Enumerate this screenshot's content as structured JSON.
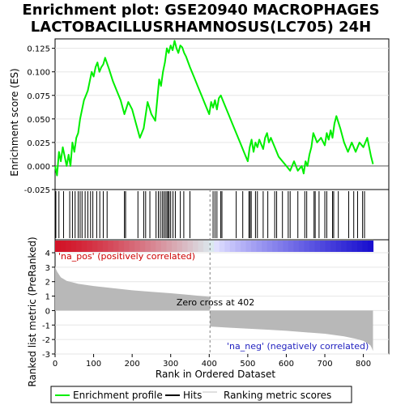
{
  "chart_data": [
    {
      "type": "line",
      "title": "Enrichment plot: GSE20940 MACROPHAGES LACTOBACILLUSRHAMNOSUS(LC705) 24H",
      "title_lines": [
        "Enrichment plot: GSE20940 MACROPHAGES",
        "LACTOBACILLUSRHAMNOSUS(LC705) 24H"
      ],
      "ylabel": "Enrichment score (ES)",
      "xlim": [
        0,
        866
      ],
      "ylim": [
        -0.025,
        0.135
      ],
      "yticks": [
        -0.025,
        0.0,
        0.025,
        0.05,
        0.075,
        0.1,
        0.125
      ],
      "ytick_labels": [
        "-0.025",
        "0.000",
        "0.025",
        "0.050",
        "0.075",
        "0.100",
        "0.125"
      ],
      "series": [
        {
          "name": "Enrichment profile",
          "color": "#00ee00",
          "x": [
            0,
            5,
            10,
            15,
            20,
            25,
            30,
            35,
            40,
            45,
            50,
            55,
            60,
            65,
            70,
            75,
            80,
            85,
            90,
            95,
            100,
            105,
            110,
            115,
            120,
            125,
            130,
            140,
            150,
            160,
            170,
            180,
            190,
            200,
            210,
            220,
            230,
            240,
            250,
            260,
            270,
            275,
            280,
            285,
            290,
            295,
            300,
            305,
            310,
            315,
            320,
            325,
            330,
            335,
            340,
            350,
            360,
            370,
            380,
            390,
            400,
            405,
            410,
            415,
            420,
            425,
            430,
            440,
            450,
            460,
            470,
            480,
            490,
            500,
            505,
            510,
            515,
            520,
            525,
            530,
            540,
            545,
            550,
            555,
            560,
            570,
            580,
            590,
            600,
            610,
            620,
            630,
            640,
            645,
            650,
            655,
            660,
            665,
            670,
            680,
            690,
            700,
            705,
            710,
            715,
            720,
            725,
            730,
            740,
            750,
            760,
            770,
            780,
            790,
            800,
            810,
            820,
            825
          ],
          "y": [
            0.0,
            -0.01,
            0.015,
            0.005,
            0.02,
            0.01,
            0.0,
            0.012,
            0.0,
            0.025,
            0.015,
            0.03,
            0.035,
            0.05,
            0.06,
            0.07,
            0.075,
            0.08,
            0.09,
            0.1,
            0.095,
            0.105,
            0.11,
            0.1,
            0.105,
            0.108,
            0.115,
            0.103,
            0.09,
            0.08,
            0.07,
            0.055,
            0.068,
            0.06,
            0.045,
            0.03,
            0.04,
            0.068,
            0.055,
            0.048,
            0.092,
            0.085,
            0.1,
            0.11,
            0.125,
            0.12,
            0.128,
            0.123,
            0.133,
            0.125,
            0.12,
            0.128,
            0.126,
            0.12,
            0.116,
            0.105,
            0.095,
            0.085,
            0.075,
            0.065,
            0.055,
            0.068,
            0.062,
            0.07,
            0.06,
            0.072,
            0.075,
            0.065,
            0.055,
            0.045,
            0.035,
            0.025,
            0.015,
            0.005,
            0.02,
            0.028,
            0.015,
            0.025,
            0.02,
            0.028,
            0.018,
            0.03,
            0.035,
            0.025,
            0.03,
            0.02,
            0.01,
            0.005,
            0.0,
            -0.005,
            0.005,
            -0.005,
            0.0,
            -0.008,
            0.005,
            0.0,
            0.012,
            0.02,
            0.035,
            0.025,
            0.03,
            0.022,
            0.035,
            0.028,
            0.038,
            0.03,
            0.045,
            0.053,
            0.04,
            0.025,
            0.015,
            0.025,
            0.015,
            0.025,
            0.02,
            0.03,
            0.01,
            0.002
          ]
        }
      ],
      "hits": [
        2,
        10,
        22,
        38,
        45,
        52,
        60,
        65,
        70,
        78,
        85,
        92,
        98,
        108,
        116,
        125,
        135,
        180,
        183,
        215,
        230,
        235,
        246,
        262,
        268,
        273,
        278,
        282,
        286,
        290,
        293,
        296,
        300,
        306,
        312,
        325,
        334,
        350,
        410,
        415,
        420,
        430,
        433,
        470,
        487,
        503,
        506,
        509,
        520,
        525,
        540,
        552,
        570,
        575,
        590,
        605,
        610,
        630,
        648,
        653,
        672,
        675,
        685,
        700,
        705,
        720,
        723,
        735,
        762,
        775,
        785,
        798,
        803
      ],
      "ranked_metric": {
        "ylabel": "Ranked list metric (PreRanked)",
        "xlabel": "Rank in Ordered Dataset",
        "ylim": [
          -3,
          4
        ],
        "yticks": [
          -3,
          -2,
          -1,
          0,
          1,
          2,
          3,
          4
        ],
        "ytick_labels": [
          "-3",
          "-2",
          "-1",
          "0",
          "1",
          "2",
          "3",
          "4"
        ],
        "xticks": [
          0,
          100,
          200,
          300,
          400,
          500,
          600,
          700,
          800
        ],
        "xtick_labels": [
          "0",
          "100",
          "200",
          "300",
          "400",
          "500",
          "600",
          "700",
          "800"
        ],
        "n": 825,
        "zero_cross": 402,
        "points_rank": [
          0,
          5,
          15,
          30,
          60,
          100,
          150,
          200,
          250,
          300,
          350,
          401,
          402,
          410,
          450,
          500,
          550,
          600,
          650,
          700,
          750,
          780,
          800,
          810,
          818,
          822,
          825
        ],
        "points_value": [
          3.0,
          2.7,
          2.3,
          2.05,
          1.85,
          1.7,
          1.55,
          1.4,
          1.3,
          1.2,
          1.08,
          0.95,
          -1.1,
          -1.12,
          -1.18,
          -1.25,
          -1.32,
          -1.4,
          -1.5,
          -1.6,
          -1.78,
          -1.95,
          -2.1,
          -2.25,
          -2.4,
          -2.6,
          -2.8
        ]
      },
      "annotations": {
        "pos_label": "'na_pos' (positively correlated)",
        "neg_label": "'na_neg' (negatively correlated)",
        "zero_cross_label": "Zero cross at 402"
      },
      "legend": [
        {
          "label": "Enrichment profile",
          "color": "#00ee00"
        },
        {
          "label": "Hits",
          "color": "#000000"
        },
        {
          "label": "Ranking metric scores",
          "color": "#c0c0c0"
        }
      ],
      "colors": {
        "pos_label": "#cc0000",
        "neg_label": "#1f1fbf",
        "metric_fill": "#b8b8b8",
        "zero_line": "#808080",
        "grid": "#e6e6e6"
      }
    }
  ]
}
